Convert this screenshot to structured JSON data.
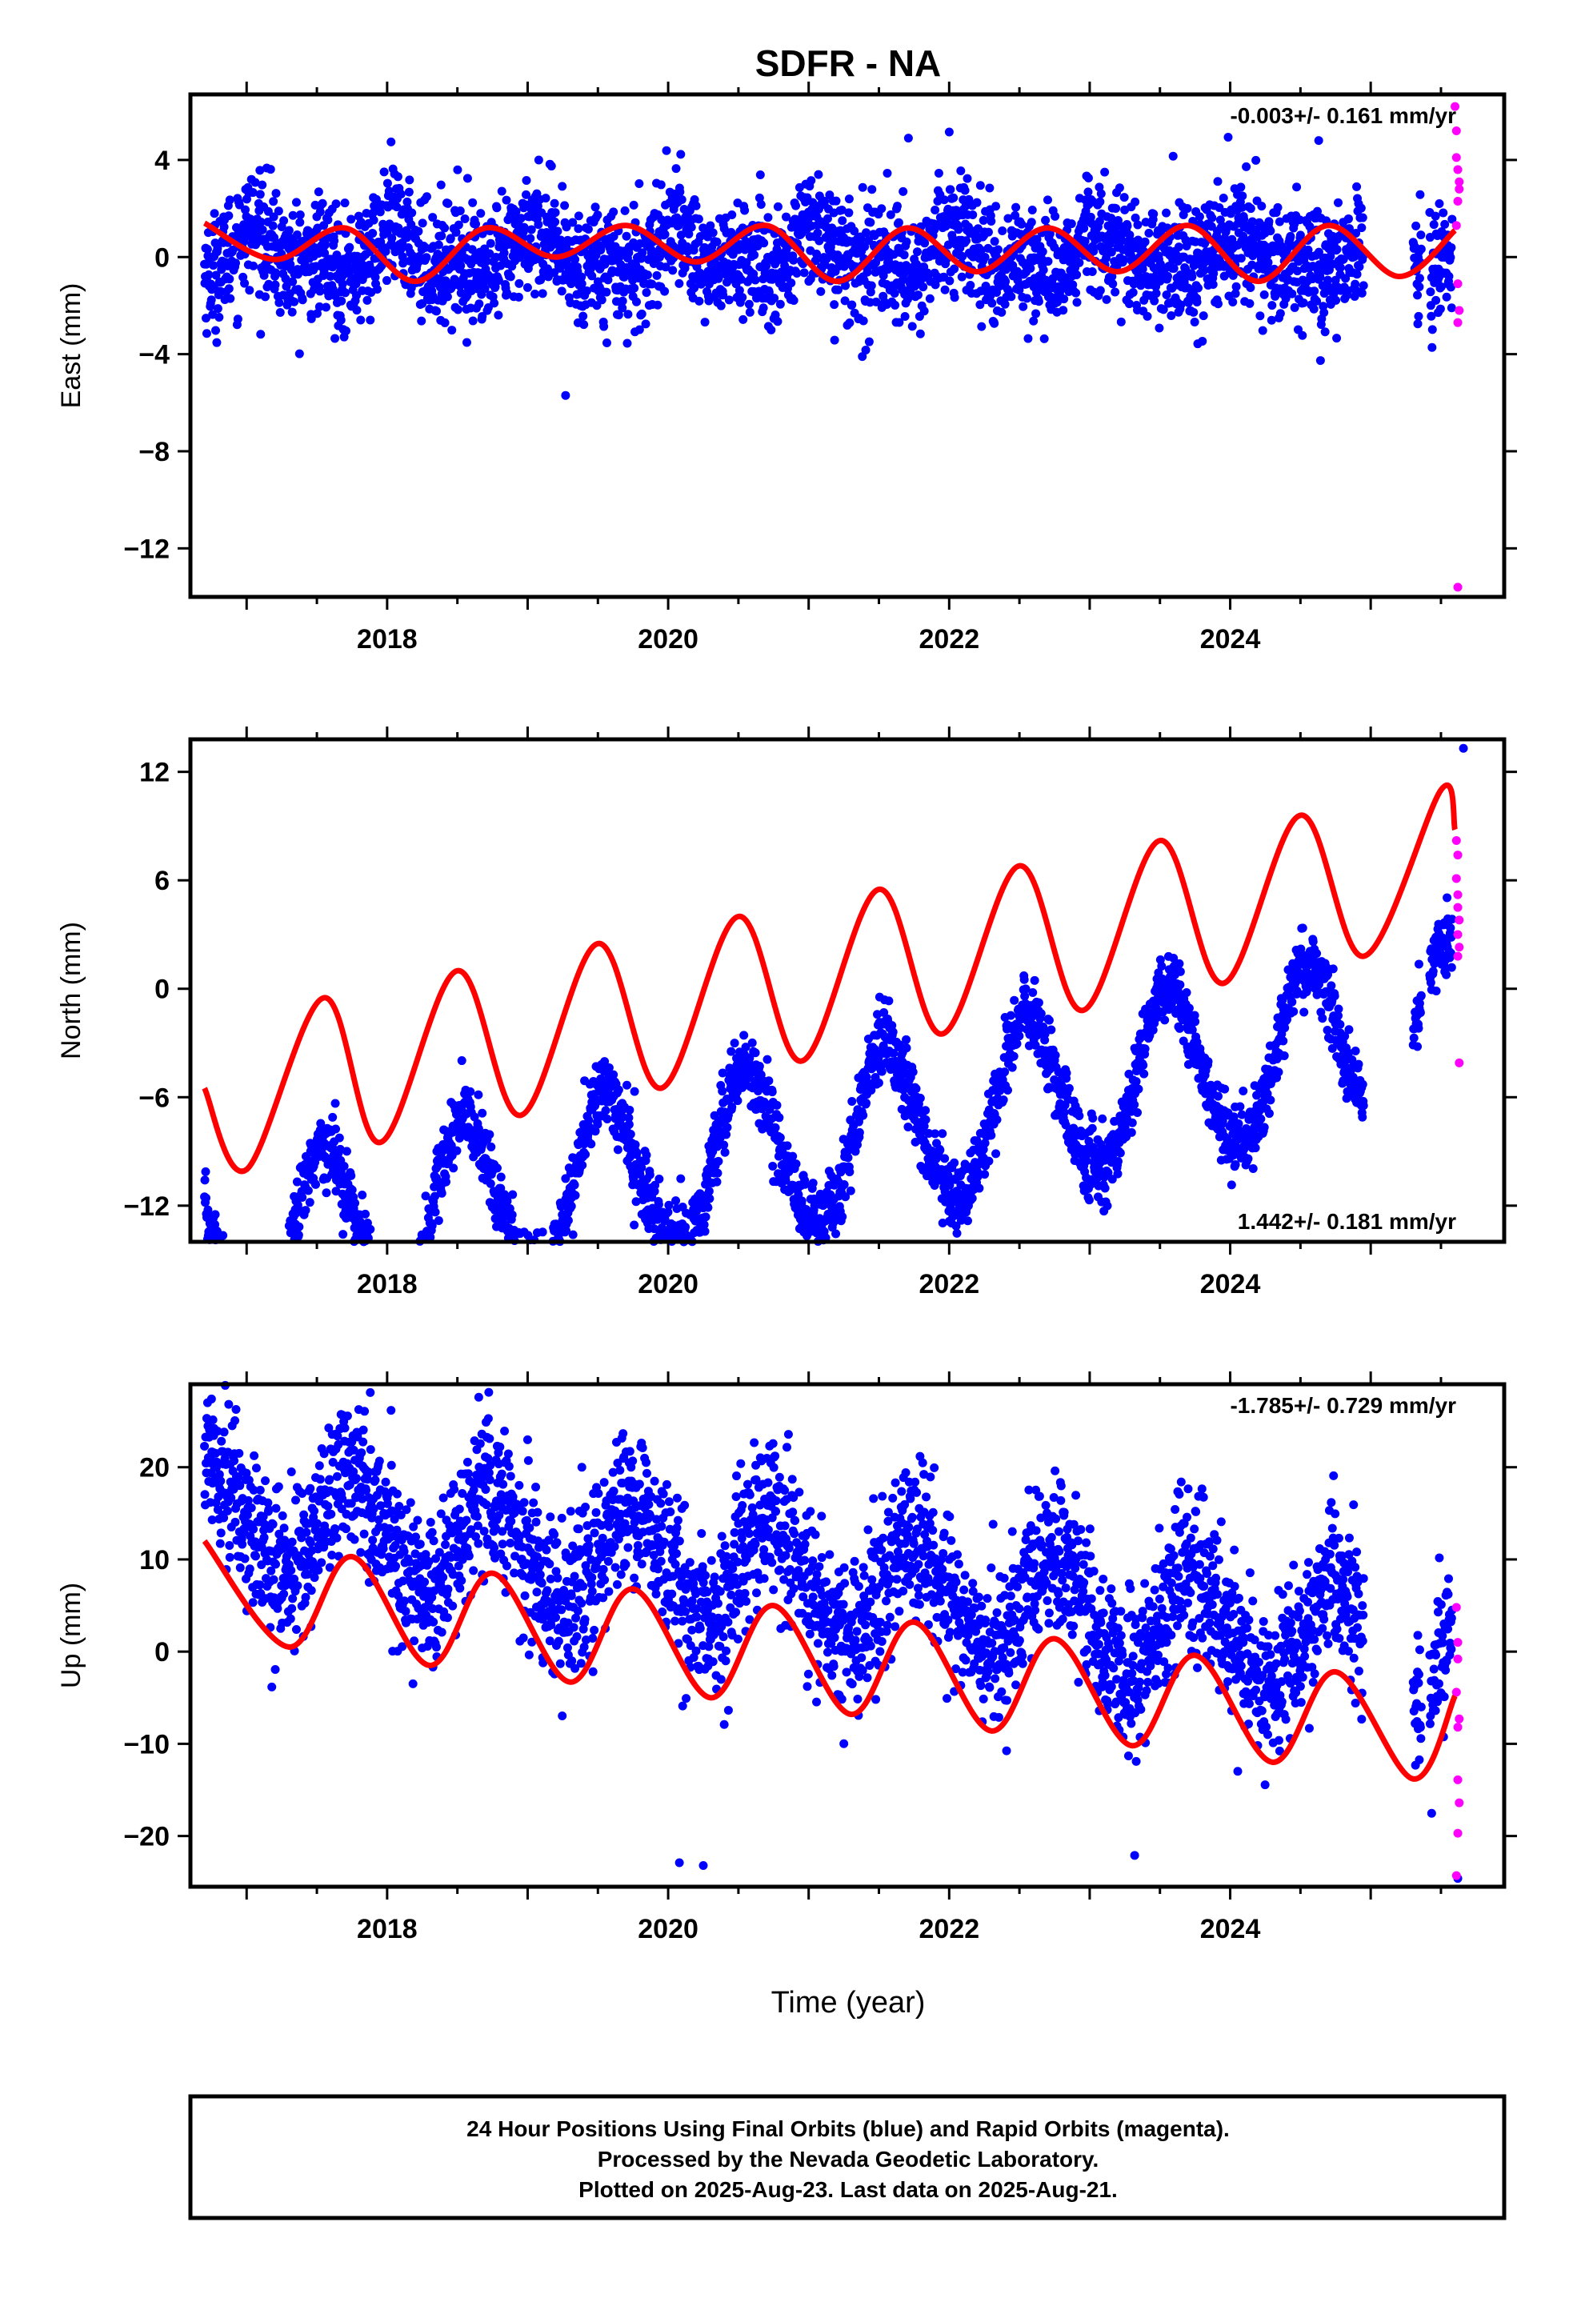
{
  "figure": {
    "title": "SDFR - NA",
    "xlabel": "Time (year)",
    "footer": [
      "24 Hour Positions Using Final Orbits (blue) and Rapid Orbits (magenta).",
      "Processed by the Nevada Geodetic Laboratory.",
      "Plotted on 2025-Aug-23. Last data on 2025-Aug-21."
    ],
    "colors": {
      "final": "#0000ff",
      "rapid": "#ff00ff",
      "model": "#ff0000",
      "frame": "#000000"
    }
  },
  "chart_data": [
    {
      "type": "scatter",
      "component": "east",
      "ylabel": "East (mm)",
      "rate_label": "-0.003+/- 0.161 mm/yr",
      "rate_position": "top-right",
      "xlim": [
        2016.6,
        2025.95
      ],
      "ylim": [
        -14,
        6.7
      ],
      "x_ticks": [
        2018,
        2020,
        2022,
        2024
      ],
      "y_ticks": [
        4,
        0,
        -4,
        -8,
        -12
      ],
      "grid": false,
      "series": [
        {
          "name": "Final Orbits",
          "color": "#0000ff",
          "model": {
            "offset": 0.1,
            "slope": -0.003,
            "annual_cos": 0.55,
            "annual_sin": 0.25,
            "semiannual_cos": 0.45,
            "semiannual_sin": 0.2
          },
          "scatter_sd": 1.2,
          "outliers": [
            {
              "x": 2019.27,
              "y": -5.7
            },
            {
              "x": 2021.71,
              "y": 4.9
            },
            {
              "x": 2024.63,
              "y": 4.8
            }
          ]
        },
        {
          "name": "Rapid Orbits",
          "color": "#ff00ff",
          "points": [
            [
              2025.6,
              6.2
            ],
            [
              2025.61,
              5.2
            ],
            [
              2025.61,
              4.1
            ],
            [
              2025.62,
              3.6
            ],
            [
              2025.63,
              3.1
            ],
            [
              2025.63,
              2.8
            ],
            [
              2025.62,
              2.3
            ],
            [
              2025.61,
              1.3
            ],
            [
              2025.62,
              -1.1
            ],
            [
              2025.63,
              -2.2
            ],
            [
              2025.62,
              -2.7
            ],
            [
              2025.62,
              -13.6
            ]
          ]
        }
      ],
      "model_curve": {
        "color": "#ff0000",
        "x": [
          2016.7,
          2017.2,
          2017.7,
          2018.2,
          2018.7,
          2019.2,
          2019.7,
          2020.2,
          2020.7,
          2021.2,
          2021.7,
          2022.2,
          2022.7,
          2023.2,
          2023.7,
          2024.2,
          2024.7,
          2025.2,
          2025.6
        ],
        "y": [
          1.4,
          -0.1,
          1.2,
          -1.0,
          1.2,
          0.0,
          1.3,
          -0.2,
          1.3,
          -1.0,
          1.2,
          -0.6,
          1.2,
          -0.6,
          1.3,
          -1.0,
          1.3,
          -0.8,
          1.1
        ]
      }
    },
    {
      "type": "scatter",
      "component": "north",
      "ylabel": "North (mm)",
      "rate_label": "1.442+/- 0.181 mm/yr",
      "rate_position": "bottom-right",
      "xlim": [
        2016.6,
        2025.95
      ],
      "ylim": [
        -14,
        13.8
      ],
      "x_ticks": [
        2018,
        2020,
        2022,
        2024
      ],
      "y_ticks": [
        12,
        6,
        0,
        -6,
        -12
      ],
      "grid": false,
      "series": [
        {
          "name": "Final Orbits",
          "color": "#0000ff",
          "model": {
            "offset": -15.8,
            "slope": 1.442,
            "annual_cos": -4.3,
            "annual_sin": -1.6,
            "semiannual_cos": 0.4,
            "semiannual_sin": 0.0
          },
          "scatter_sd": 1.0,
          "outliers": [
            {
              "x": 2016.76,
              "y": -13.5
            },
            {
              "x": 2019.27,
              "y": -10.5
            },
            {
              "x": 2025.66,
              "y": 13.3
            }
          ]
        },
        {
          "name": "Rapid Orbits",
          "color": "#ff00ff",
          "points": [
            [
              2025.61,
              8.2
            ],
            [
              2025.62,
              7.4
            ],
            [
              2025.61,
              6.1
            ],
            [
              2025.62,
              5.2
            ],
            [
              2025.62,
              4.5
            ],
            [
              2025.63,
              3.8
            ],
            [
              2025.62,
              3.0
            ],
            [
              2025.63,
              2.3
            ],
            [
              2025.62,
              1.8
            ],
            [
              2025.63,
              -4.1
            ]
          ]
        }
      ],
      "model_curve": {
        "color": "#ff0000",
        "x": [
          2016.7,
          2017.0,
          2017.55,
          2017.95,
          2018.5,
          2018.95,
          2019.5,
          2019.95,
          2020.5,
          2020.95,
          2021.5,
          2021.95,
          2022.5,
          2022.95,
          2023.5,
          2023.95,
          2024.5,
          2024.95,
          2025.5,
          2025.6
        ],
        "y": [
          -5.5,
          -10.0,
          -0.5,
          -8.5,
          1.0,
          -7.0,
          2.5,
          -5.5,
          4.0,
          -4.0,
          5.5,
          -2.5,
          6.8,
          -1.2,
          8.2,
          0.3,
          9.6,
          1.8,
          11.0,
          8.8
        ]
      }
    },
    {
      "type": "scatter",
      "component": "up",
      "ylabel": "Up (mm)",
      "rate_label": "-1.785+/- 0.729 mm/yr",
      "rate_position": "top-right",
      "xlim": [
        2016.6,
        2025.95
      ],
      "ylim": [
        -25.5,
        29
      ],
      "x_ticks": [
        2018,
        2020,
        2022,
        2024
      ],
      "y_ticks": [
        20,
        10,
        0,
        -10,
        -20
      ],
      "grid": false,
      "series": [
        {
          "name": "Final Orbits",
          "color": "#0000ff",
          "model": {
            "offset": 16.5,
            "slope": -1.785,
            "annual_cos": 0.0,
            "annual_sin": -5.8,
            "semiannual_cos": -0.4,
            "semiannual_sin": 0.4
          },
          "scatter_sd": 4.2,
          "outliers": [
            {
              "x": 2016.75,
              "y": 27.4
            },
            {
              "x": 2017.88,
              "y": 28.1
            },
            {
              "x": 2020.08,
              "y": -22.9
            },
            {
              "x": 2020.25,
              "y": -23.2
            },
            {
              "x": 2023.32,
              "y": -22.1
            },
            {
              "x": 2025.62,
              "y": -24.6
            }
          ]
        },
        {
          "name": "Rapid Orbits",
          "color": "#ff00ff",
          "points": [
            [
              2025.61,
              4.8
            ],
            [
              2025.62,
              1.0
            ],
            [
              2025.62,
              -0.8
            ],
            [
              2025.61,
              -4.4
            ],
            [
              2025.63,
              -7.3
            ],
            [
              2025.62,
              -8.2
            ],
            [
              2025.62,
              -13.9
            ],
            [
              2025.63,
              -16.4
            ],
            [
              2025.62,
              -19.7
            ],
            [
              2025.61,
              -24.3
            ]
          ]
        }
      ],
      "model_curve": {
        "color": "#ff0000",
        "x": [
          2016.7,
          2017.3,
          2017.75,
          2018.3,
          2018.75,
          2019.3,
          2019.75,
          2020.3,
          2020.75,
          2021.3,
          2021.75,
          2022.3,
          2022.75,
          2023.3,
          2023.75,
          2024.3,
          2024.75,
          2025.3,
          2025.6
        ],
        "y": [
          12.0,
          0.5,
          10.3,
          -1.5,
          8.5,
          -3.3,
          6.8,
          -5.0,
          5.0,
          -6.8,
          3.2,
          -8.6,
          1.4,
          -10.2,
          -0.4,
          -12.0,
          -2.2,
          -13.8,
          -4.8
        ]
      }
    }
  ]
}
